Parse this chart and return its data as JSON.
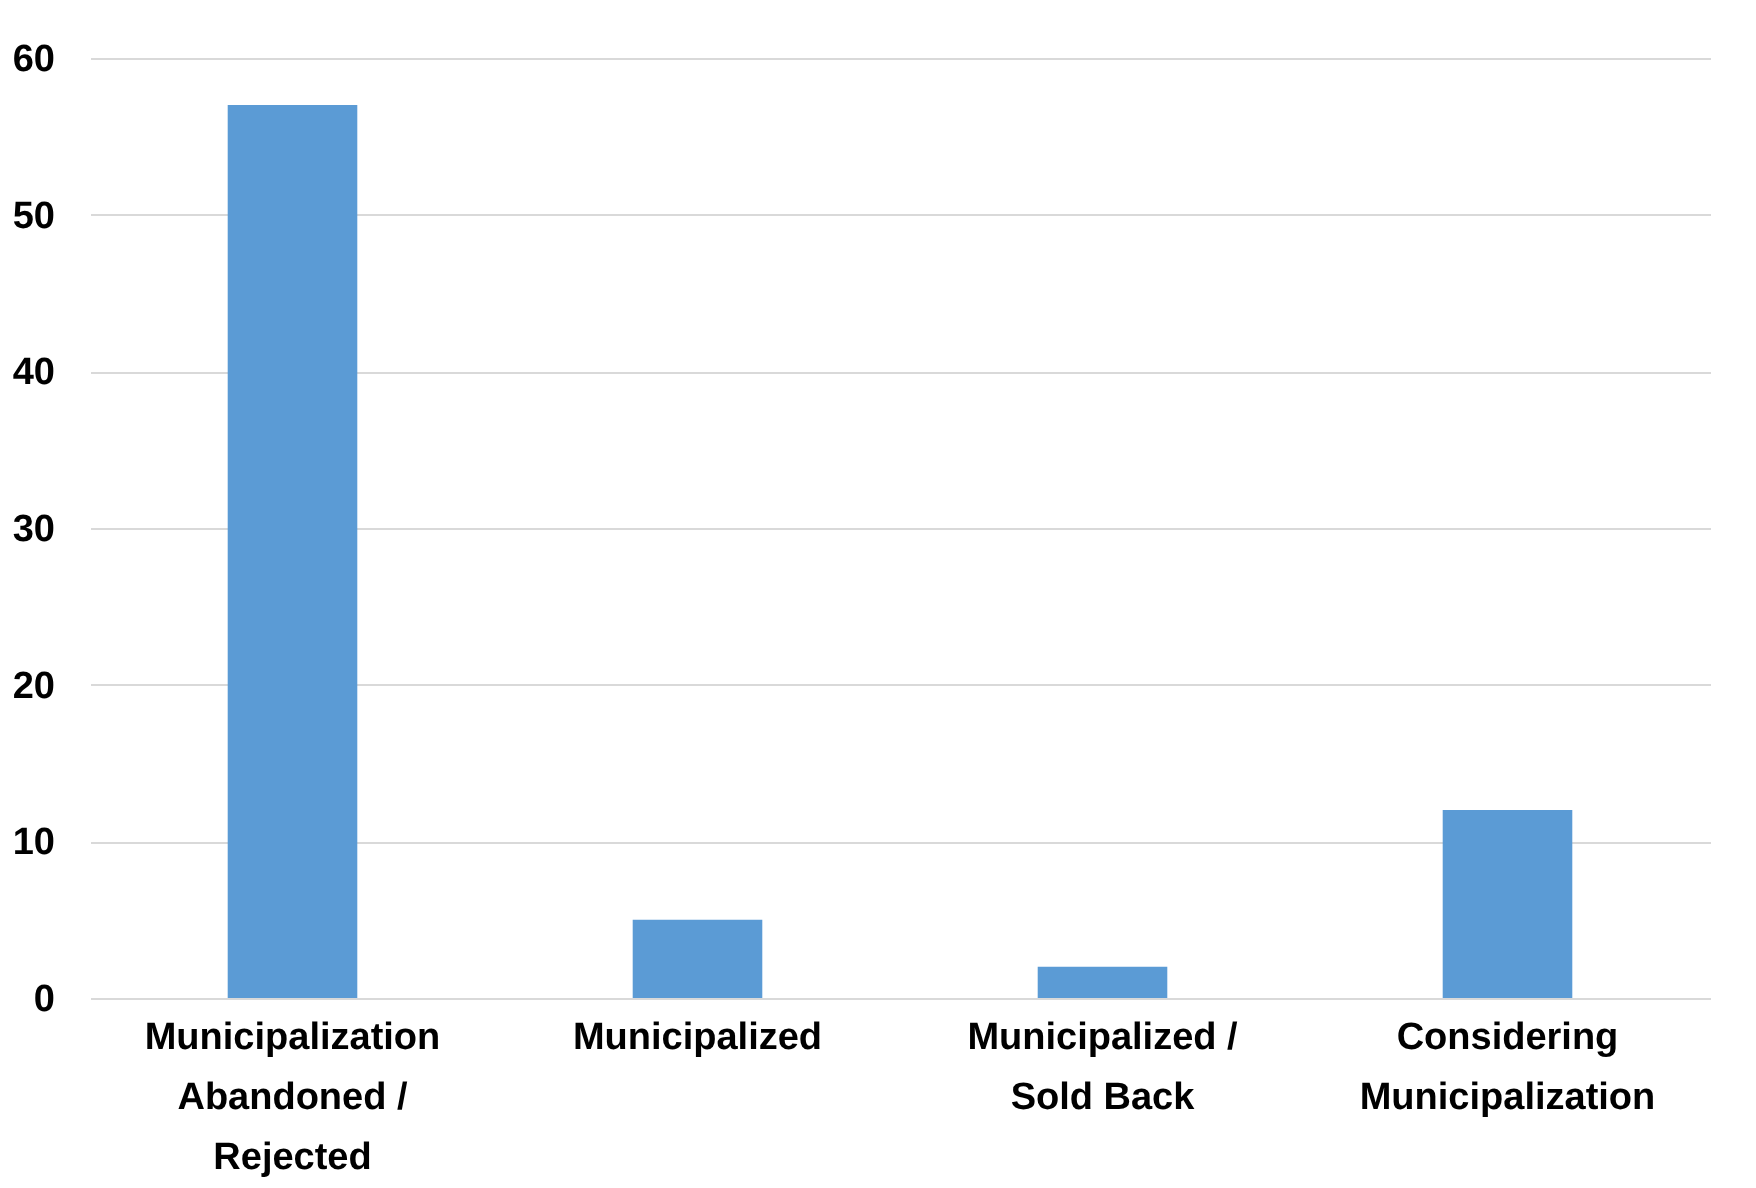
{
  "chart_data": {
    "type": "bar",
    "categories": [
      "Municipalization\nAbandoned /\nRejected",
      "Municipalized",
      "Municipalized /\nSold Back",
      "Considering\nMunicipalization"
    ],
    "values": [
      57,
      5,
      2,
      12
    ],
    "color": "#5b9bd5",
    "ylim": [
      0,
      60
    ],
    "yticks": [
      0,
      10,
      20,
      30,
      40,
      50,
      60
    ],
    "grid": "y"
  }
}
